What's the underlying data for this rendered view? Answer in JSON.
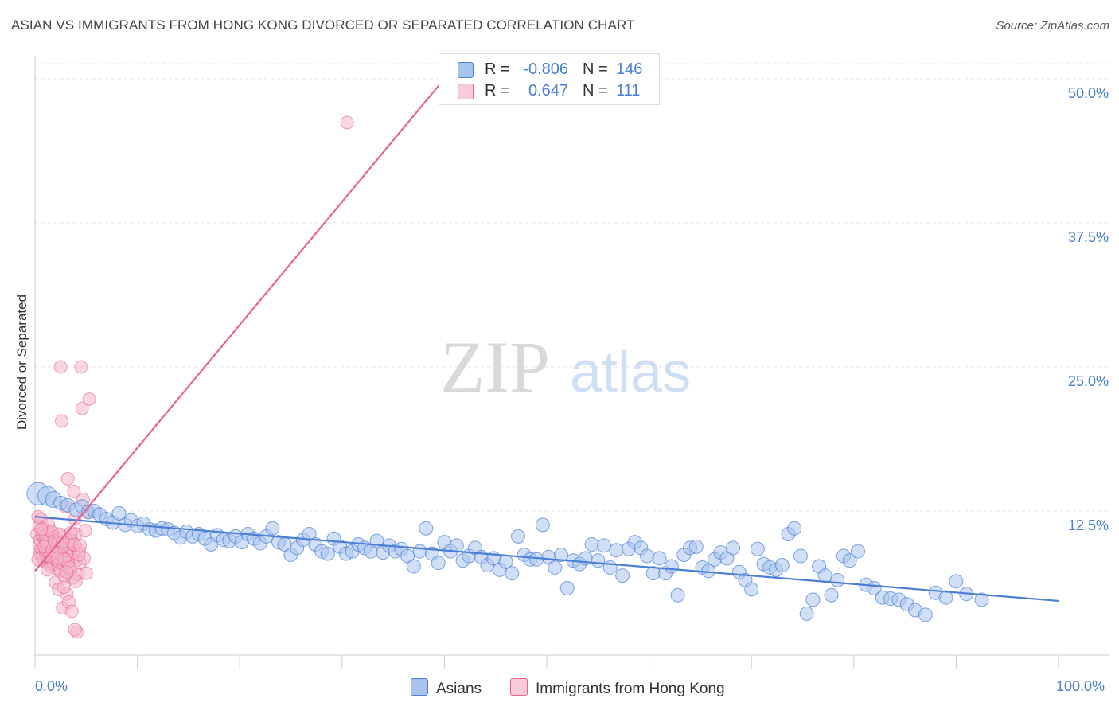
{
  "title": "ASIAN VS IMMIGRANTS FROM HONG KONG DIVORCED OR SEPARATED CORRELATION CHART",
  "source": "Source: ZipAtlas.com",
  "watermark": {
    "zip": "ZIP",
    "atlas": "atlas"
  },
  "colors": {
    "blue": "#4a7fd4",
    "blue_fill": "#a9c4ec",
    "pink": "#e8638f",
    "pink_fill": "#f4b4c8",
    "axis_text": "#4a7fc8"
  },
  "legend": {
    "rows": [
      {
        "r_label": "R =",
        "r_value": "-0.806",
        "n_label": "N =",
        "n_value": "146"
      },
      {
        "r_label": "R =",
        "r_value": "0.647",
        "n_label": "N =",
        "n_value": "111"
      }
    ]
  },
  "bottom_legend": {
    "asians": "Asians",
    "hk": "Immigrants from Hong Kong"
  },
  "chart_data": {
    "type": "scatter",
    "title": "ASIAN VS IMMIGRANTS FROM HONG KONG DIVORCED OR SEPARATED CORRELATION CHART",
    "xlabel": "",
    "ylabel": "Divorced or Separated",
    "xlim": [
      0,
      100
    ],
    "ylim": [
      0,
      52
    ],
    "x_tick_labels": [
      "0.0%",
      "100.0%"
    ],
    "y_ticks": [
      12.5,
      25.0,
      37.5,
      50.0
    ],
    "y_tick_labels": [
      "12.5%",
      "25.0%",
      "37.5%",
      "50.0%"
    ],
    "grid": true,
    "legend_position": "top-center",
    "series": [
      {
        "name": "Asians",
        "color": "#4a7fd4",
        "r": -0.806,
        "n": 146,
        "trend": {
          "x": [
            0,
            100
          ],
          "y": [
            12.0,
            4.7
          ]
        },
        "points": [
          [
            0.3,
            14.0
          ],
          [
            1.2,
            13.8
          ],
          [
            1.8,
            13.5
          ],
          [
            2.5,
            13.2
          ],
          [
            3.2,
            13.0
          ],
          [
            4.0,
            12.6
          ],
          [
            4.6,
            12.9
          ],
          [
            5.2,
            12.4
          ],
          [
            5.8,
            12.5
          ],
          [
            6.3,
            12.2
          ],
          [
            7.0,
            11.8
          ],
          [
            7.6,
            11.5
          ],
          [
            8.2,
            12.3
          ],
          [
            8.8,
            11.3
          ],
          [
            9.4,
            11.7
          ],
          [
            10.0,
            11.2
          ],
          [
            10.6,
            11.4
          ],
          [
            11.2,
            10.9
          ],
          [
            11.8,
            10.8
          ],
          [
            12.4,
            11.0
          ],
          [
            13.0,
            10.9
          ],
          [
            13.6,
            10.6
          ],
          [
            14.2,
            10.2
          ],
          [
            14.8,
            10.7
          ],
          [
            15.4,
            10.3
          ],
          [
            16.0,
            10.5
          ],
          [
            16.6,
            10.1
          ],
          [
            17.2,
            9.6
          ],
          [
            17.8,
            10.4
          ],
          [
            18.4,
            10.0
          ],
          [
            19.0,
            9.9
          ],
          [
            19.6,
            10.3
          ],
          [
            20.2,
            9.8
          ],
          [
            20.8,
            10.5
          ],
          [
            21.4,
            10.1
          ],
          [
            22.0,
            9.7
          ],
          [
            22.6,
            10.3
          ],
          [
            23.2,
            11.0
          ],
          [
            23.8,
            9.8
          ],
          [
            24.4,
            9.6
          ],
          [
            25.0,
            8.7
          ],
          [
            25.6,
            9.3
          ],
          [
            26.2,
            10.0
          ],
          [
            26.8,
            10.5
          ],
          [
            27.4,
            9.6
          ],
          [
            28.0,
            9.0
          ],
          [
            28.6,
            8.8
          ],
          [
            29.2,
            10.1
          ],
          [
            29.8,
            9.4
          ],
          [
            30.4,
            8.8
          ],
          [
            31.0,
            9.0
          ],
          [
            31.6,
            9.6
          ],
          [
            32.2,
            9.3
          ],
          [
            32.8,
            9.0
          ],
          [
            33.4,
            9.9
          ],
          [
            34.0,
            8.9
          ],
          [
            34.6,
            9.5
          ],
          [
            35.2,
            9.0
          ],
          [
            35.8,
            9.2
          ],
          [
            36.4,
            8.6
          ],
          [
            37.0,
            7.7
          ],
          [
            37.6,
            9.0
          ],
          [
            38.2,
            11.0
          ],
          [
            38.8,
            8.8
          ],
          [
            39.4,
            8.0
          ],
          [
            40.0,
            9.8
          ],
          [
            40.6,
            9.0
          ],
          [
            41.2,
            9.5
          ],
          [
            41.8,
            8.2
          ],
          [
            42.4,
            8.6
          ],
          [
            43.0,
            9.3
          ],
          [
            43.6,
            8.5
          ],
          [
            44.2,
            7.8
          ],
          [
            44.8,
            8.4
          ],
          [
            45.4,
            7.4
          ],
          [
            46.0,
            8.1
          ],
          [
            46.6,
            7.1
          ],
          [
            47.2,
            10.3
          ],
          [
            47.8,
            8.7
          ],
          [
            48.4,
            8.3
          ],
          [
            49.0,
            8.3
          ],
          [
            49.6,
            11.3
          ],
          [
            50.2,
            8.5
          ],
          [
            50.8,
            7.6
          ],
          [
            51.4,
            8.7
          ],
          [
            52.0,
            5.8
          ],
          [
            52.6,
            8.2
          ],
          [
            53.2,
            7.9
          ],
          [
            53.8,
            8.4
          ],
          [
            54.4,
            9.6
          ],
          [
            55.0,
            8.2
          ],
          [
            55.6,
            9.5
          ],
          [
            56.2,
            7.6
          ],
          [
            56.8,
            9.1
          ],
          [
            57.4,
            6.9
          ],
          [
            58.0,
            9.2
          ],
          [
            58.6,
            9.8
          ],
          [
            59.2,
            9.3
          ],
          [
            59.8,
            8.6
          ],
          [
            60.4,
            7.1
          ],
          [
            61.0,
            8.4
          ],
          [
            61.6,
            7.1
          ],
          [
            62.2,
            7.7
          ],
          [
            62.8,
            5.2
          ],
          [
            63.4,
            8.7
          ],
          [
            64.0,
            9.3
          ],
          [
            64.6,
            9.4
          ],
          [
            65.2,
            7.6
          ],
          [
            65.8,
            7.3
          ],
          [
            66.4,
            8.3
          ],
          [
            67.0,
            8.9
          ],
          [
            67.6,
            8.4
          ],
          [
            68.2,
            9.3
          ],
          [
            68.8,
            7.2
          ],
          [
            69.4,
            6.5
          ],
          [
            70.0,
            5.7
          ],
          [
            70.6,
            9.2
          ],
          [
            71.2,
            7.9
          ],
          [
            71.8,
            7.6
          ],
          [
            72.4,
            7.4
          ],
          [
            73.0,
            7.8
          ],
          [
            73.6,
            10.5
          ],
          [
            74.2,
            11.0
          ],
          [
            74.8,
            8.6
          ],
          [
            75.4,
            3.6
          ],
          [
            76.0,
            4.8
          ],
          [
            76.6,
            7.7
          ],
          [
            77.2,
            6.9
          ],
          [
            77.8,
            5.2
          ],
          [
            78.4,
            6.5
          ],
          [
            79.0,
            8.6
          ],
          [
            79.6,
            8.2
          ],
          [
            80.4,
            9.0
          ],
          [
            81.2,
            6.1
          ],
          [
            82.0,
            5.8
          ],
          [
            82.8,
            5.0
          ],
          [
            83.6,
            4.9
          ],
          [
            84.4,
            4.8
          ],
          [
            85.2,
            4.4
          ],
          [
            86.0,
            3.9
          ],
          [
            87.0,
            3.5
          ],
          [
            88.0,
            5.4
          ],
          [
            89.0,
            5.0
          ],
          [
            90.0,
            6.4
          ],
          [
            91.0,
            5.3
          ],
          [
            92.5,
            4.8
          ]
        ]
      },
      {
        "name": "Immigrants from Hong Kong",
        "color": "#e8638f",
        "r": 0.647,
        "n": 111,
        "trend": {
          "x": [
            0,
            40
          ],
          "y": [
            7.3,
            50.0
          ]
        },
        "points": [
          [
            0.2,
            10.5
          ],
          [
            0.3,
            12.0
          ],
          [
            0.4,
            9.5
          ],
          [
            0.4,
            11.2
          ],
          [
            0.5,
            8.8
          ],
          [
            0.5,
            10.0
          ],
          [
            0.6,
            9.2
          ],
          [
            0.6,
            11.8
          ],
          [
            0.7,
            8.5
          ],
          [
            0.7,
            10.3
          ],
          [
            0.8,
            9.7
          ],
          [
            0.8,
            11.0
          ],
          [
            0.9,
            8.2
          ],
          [
            0.9,
            10.8
          ],
          [
            1.0,
            9.0
          ],
          [
            1.0,
            10.1
          ],
          [
            1.1,
            8.7
          ],
          [
            1.1,
            9.6
          ],
          [
            1.2,
            10.4
          ],
          [
            1.2,
            8.0
          ],
          [
            1.3,
            9.3
          ],
          [
            1.3,
            11.3
          ],
          [
            1.4,
            8.4
          ],
          [
            1.4,
            10.0
          ],
          [
            1.5,
            9.1
          ],
          [
            1.5,
            7.7
          ],
          [
            1.6,
            9.8
          ],
          [
            1.6,
            8.9
          ],
          [
            1.7,
            10.6
          ],
          [
            1.7,
            8.2
          ],
          [
            1.8,
            9.4
          ],
          [
            1.8,
            7.9
          ],
          [
            1.9,
            8.6
          ],
          [
            1.9,
            10.2
          ],
          [
            2.0,
            9.0
          ],
          [
            2.0,
            6.3
          ],
          [
            2.1,
            8.3
          ],
          [
            2.1,
            9.7
          ],
          [
            2.2,
            7.5
          ],
          [
            2.2,
            10.0
          ],
          [
            2.3,
            8.8
          ],
          [
            2.3,
            5.7
          ],
          [
            2.4,
            9.2
          ],
          [
            2.4,
            8.0
          ],
          [
            2.5,
            7.3
          ],
          [
            2.5,
            25.0
          ],
          [
            2.6,
            20.3
          ],
          [
            2.6,
            9.5
          ],
          [
            2.7,
            8.5
          ],
          [
            2.7,
            4.1
          ],
          [
            2.8,
            10.3
          ],
          [
            2.8,
            7.8
          ],
          [
            2.9,
            9.0
          ],
          [
            2.9,
            6.8
          ],
          [
            3.0,
            8.1
          ],
          [
            3.0,
            12.9
          ],
          [
            3.1,
            9.8
          ],
          [
            3.1,
            5.3
          ],
          [
            3.2,
            15.3
          ],
          [
            3.3,
            8.6
          ],
          [
            3.3,
            4.6
          ],
          [
            3.4,
            10.1
          ],
          [
            3.5,
            7.4
          ],
          [
            3.5,
            9.3
          ],
          [
            3.6,
            3.8
          ],
          [
            3.7,
            8.9
          ],
          [
            3.7,
            6.7
          ],
          [
            3.8,
            14.2
          ],
          [
            3.9,
            9.5
          ],
          [
            3.9,
            11.8
          ],
          [
            4.0,
            8.2
          ],
          [
            4.0,
            10.5
          ],
          [
            4.1,
            2.0
          ],
          [
            4.2,
            7.0
          ],
          [
            4.3,
            9.1
          ],
          [
            4.4,
            8.0
          ],
          [
            4.5,
            25.0
          ],
          [
            4.6,
            21.4
          ],
          [
            4.7,
            13.5
          ],
          [
            4.8,
            8.4
          ],
          [
            4.9,
            10.8
          ],
          [
            5.0,
            7.1
          ],
          [
            5.2,
            12.4
          ],
          [
            5.3,
            22.2
          ],
          [
            1.1,
            9.9
          ],
          [
            1.6,
            10.7
          ],
          [
            2.1,
            8.9
          ],
          [
            2.6,
            9.3
          ],
          [
            3.2,
            8.0
          ],
          [
            3.6,
            9.9
          ],
          [
            0.9,
            9.4
          ],
          [
            1.4,
            8.6
          ],
          [
            1.9,
            9.9
          ],
          [
            2.4,
            10.5
          ],
          [
            2.9,
            8.3
          ],
          [
            3.4,
            7.6
          ],
          [
            3.8,
            9.6
          ],
          [
            4.3,
            8.7
          ],
          [
            0.6,
            10.9
          ],
          [
            1.2,
            7.4
          ],
          [
            1.7,
            9.1
          ],
          [
            2.2,
            8.4
          ],
          [
            2.7,
            9.8
          ],
          [
            3.1,
            7.2
          ],
          [
            3.5,
            10.6
          ],
          [
            4.0,
            6.4
          ],
          [
            4.4,
            9.5
          ],
          [
            2.8,
            5.9
          ],
          [
            3.9,
            2.2
          ],
          [
            30.5,
            46.2
          ],
          [
            0.3,
            8.3
          ]
        ]
      }
    ]
  }
}
